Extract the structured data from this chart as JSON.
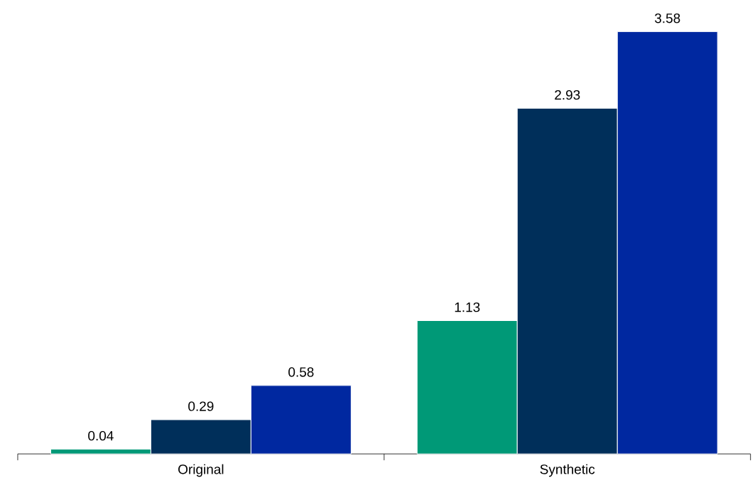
{
  "chart_data": {
    "type": "bar",
    "categories": [
      "Original",
      "Synthetic"
    ],
    "series": [
      {
        "color": "#009977",
        "values": [
          0.04,
          1.13
        ]
      },
      {
        "color": "#002f5a",
        "values": [
          0.29,
          2.93
        ]
      },
      {
        "color": "#0028a0",
        "values": [
          0.58,
          3.58
        ]
      }
    ],
    "data_labels": true
  }
}
